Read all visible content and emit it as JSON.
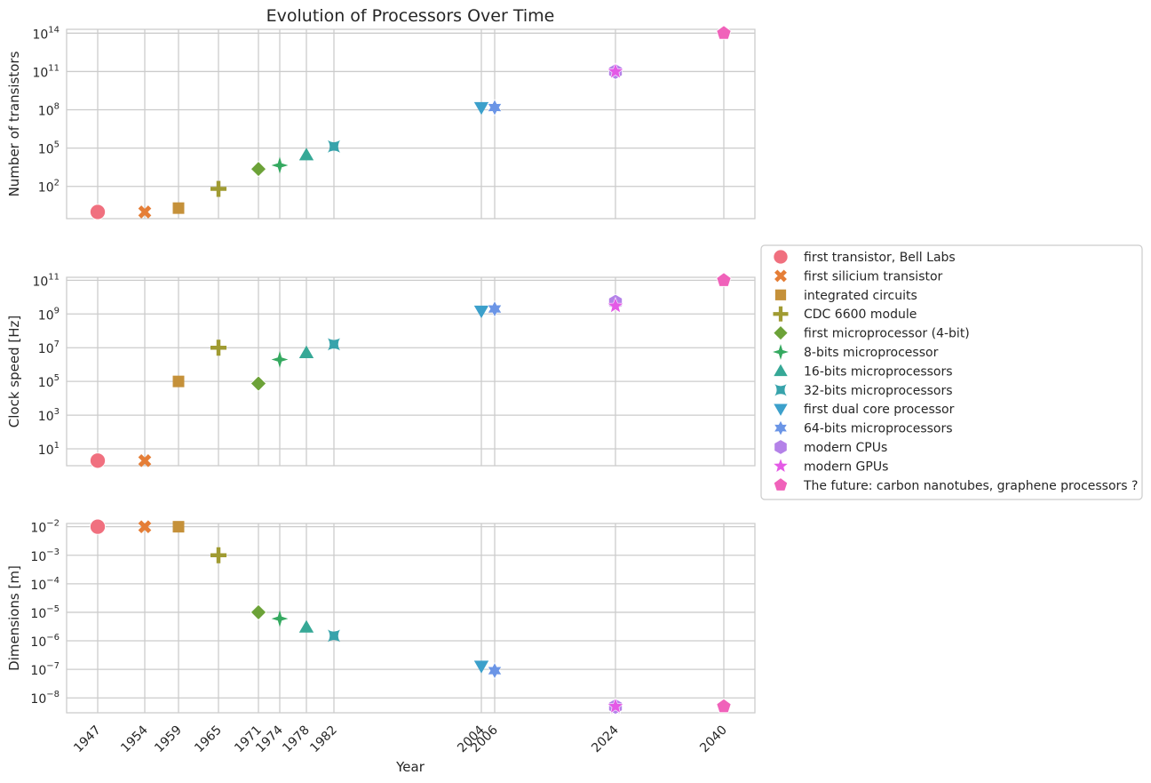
{
  "chart_data": {
    "type": "scatter",
    "title": "Evolution of Processors Over Time",
    "xlabel": "Year",
    "x_ticks": [
      1947,
      1954,
      1959,
      1965,
      1971,
      1974,
      1978,
      1982,
      2004,
      2006,
      2024,
      2040
    ],
    "series": [
      {
        "name": "first transistor, Bell Labs",
        "marker": "circle",
        "color": "#f0707f",
        "x": 1947,
        "transistors": 1,
        "clock": 2,
        "dimensions": 0.01
      },
      {
        "name": "first silicium transistor",
        "marker": "x",
        "color": "#e57e37",
        "x": 1954,
        "transistors": 1,
        "clock": 2,
        "dimensions": 0.01
      },
      {
        "name": "integrated circuits",
        "marker": "square",
        "color": "#c5913a",
        "x": 1959,
        "transistors": 2,
        "clock": 100000,
        "dimensions": 0.01
      },
      {
        "name": "CDC 6600 module",
        "marker": "plus",
        "color": "#a09b32",
        "x": 1965,
        "transistors": 64,
        "clock": 10000000,
        "dimensions": 0.001
      },
      {
        "name": "first microprocessor (4-bit)",
        "marker": "diamond",
        "color": "#6ca238",
        "x": 1971,
        "transistors": 2300,
        "clock": 75000,
        "dimensions": 1e-05
      },
      {
        "name": "8-bits microprocessor",
        "marker": "star4",
        "color": "#35a960",
        "x": 1974,
        "transistors": 4500,
        "clock": 2000000,
        "dimensions": 6e-06
      },
      {
        "name": "16-bits microprocessors",
        "marker": "triangle-up",
        "color": "#36a896",
        "x": 1978,
        "transistors": 29000,
        "clock": 5000000,
        "dimensions": 3e-06
      },
      {
        "name": "32-bits microprocessors",
        "marker": "bowtie",
        "color": "#37a3ab",
        "x": 1982,
        "transistors": 134000,
        "clock": 16000000,
        "dimensions": 1.5e-06
      },
      {
        "name": "first dual core processor",
        "marker": "triangle-down",
        "color": "#3ca0cb",
        "x": 2004,
        "transistors": 150000000,
        "clock": 1500000000,
        "dimensions": 1.3e-07
      },
      {
        "name": "64-bits microprocessors",
        "marker": "star6",
        "color": "#6b95e6",
        "x": 2006,
        "transistors": 150000000,
        "clock": 2000000000,
        "dimensions": 9e-08
      },
      {
        "name": "modern CPUs",
        "marker": "hexagon",
        "color": "#b482e8",
        "x": 2024,
        "transistors": 100000000000,
        "clock": 5000000000,
        "dimensions": 5e-09
      },
      {
        "name": "modern GPUs",
        "marker": "star5",
        "color": "#e45ae6",
        "x": 2024,
        "transistors": 100000000000,
        "clock": 3000000000,
        "dimensions": 5e-09
      },
      {
        "name": "The future: carbon nanotubes, graphene processors ?",
        "marker": "pentagon",
        "color": "#f062ba",
        "x": 2040,
        "transistors": 100000000000000,
        "clock": 100000000000,
        "dimensions": 5e-09
      }
    ],
    "panels": [
      {
        "key": "transistors",
        "ylabel": "Number of transistors",
        "scale": "log",
        "ylim": [
          0.3,
          200000000000000
        ],
        "ticks": [
          {
            "base": "10",
            "exp": "2",
            "value": 100
          },
          {
            "base": "10",
            "exp": "5",
            "value": 100000
          },
          {
            "base": "10",
            "exp": "8",
            "value": 100000000
          },
          {
            "base": "10",
            "exp": "11",
            "value": 100000000000
          },
          {
            "base": "10",
            "exp": "14",
            "value": 100000000000000
          }
        ]
      },
      {
        "key": "clock",
        "ylabel": "Clock speed [Hz]",
        "scale": "log",
        "ylim": [
          1,
          150000000000
        ],
        "ticks": [
          {
            "base": "10",
            "exp": "1",
            "value": 10
          },
          {
            "base": "10",
            "exp": "3",
            "value": 1000
          },
          {
            "base": "10",
            "exp": "5",
            "value": 100000
          },
          {
            "base": "10",
            "exp": "7",
            "value": 10000000
          },
          {
            "base": "10",
            "exp": "9",
            "value": 1000000000
          },
          {
            "base": "10",
            "exp": "11",
            "value": 100000000000
          }
        ]
      },
      {
        "key": "dimensions",
        "ylabel": "Dimensions [m]",
        "scale": "log",
        "ylim": [
          3e-09,
          0.013
        ],
        "ticks": [
          {
            "base": "10",
            "exp": "−2",
            "value": 0.01
          },
          {
            "base": "10",
            "exp": "−3",
            "value": 0.001
          },
          {
            "base": "10",
            "exp": "−4",
            "value": 0.0001
          },
          {
            "base": "10",
            "exp": "−5",
            "value": 1e-05
          },
          {
            "base": "10",
            "exp": "−6",
            "value": 1e-06
          },
          {
            "base": "10",
            "exp": "−7",
            "value": 1e-07
          },
          {
            "base": "10",
            "exp": "−8",
            "value": 1e-08
          }
        ]
      }
    ],
    "legend_position": "right",
    "grid": true
  }
}
